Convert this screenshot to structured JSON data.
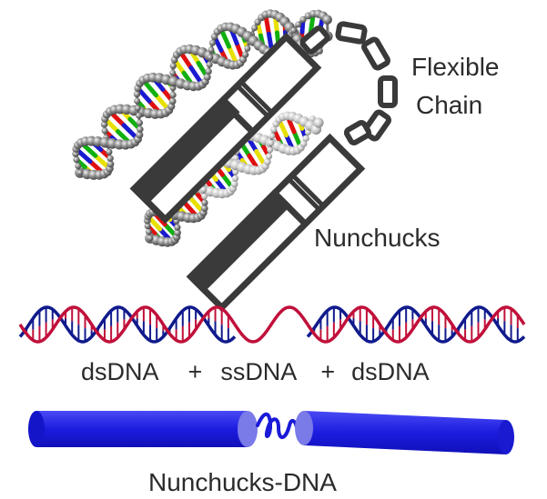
{
  "labels": {
    "flexible_line1": "Flexible",
    "flexible_line2": "Chain",
    "nunchucks": "Nunchucks",
    "segments": {
      "left": "dsDNA",
      "plus1": "+",
      "middle": "ssDNA",
      "plus2": "+",
      "right": "dsDNA"
    },
    "bottom_title": "Nunchucks-DNA"
  },
  "colors": {
    "outline": "#3a3a3a",
    "backbone": "#6e6e6e",
    "base_red": "#e01010",
    "base_blue": "#1a1ad0",
    "base_yellow": "#e8e000",
    "base_green": "#10b010",
    "wave_red": "#c0103a",
    "wave_blue": "#101a8c",
    "rod_blue": "#2020e0",
    "rod_light": "#7070e8"
  }
}
